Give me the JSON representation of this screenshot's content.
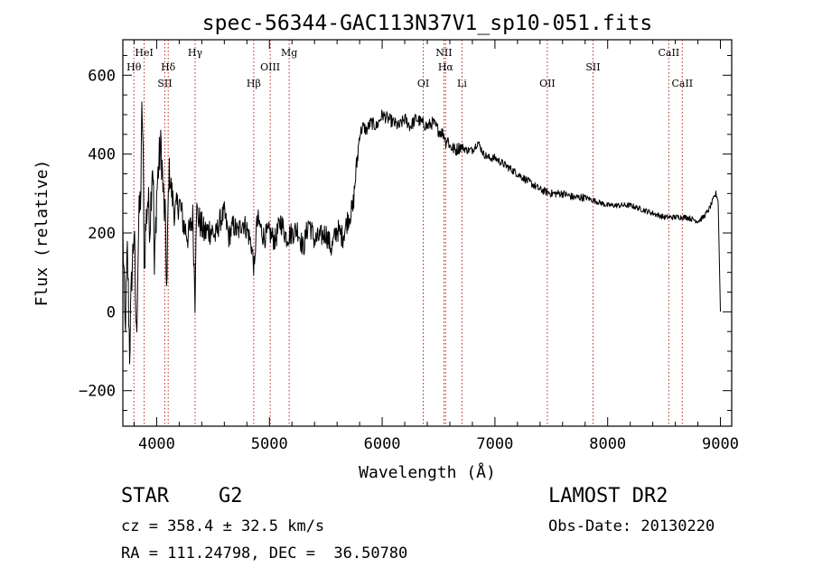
{
  "chart_data": {
    "type": "line",
    "title": "spec-56344-GAC113N37V1_sp10-051.fits",
    "xlabel": "Wavelength (Å)",
    "ylabel": "Flux (relative)",
    "xlim": [
      3700,
      9100
    ],
    "ylim": [
      -290,
      690
    ],
    "x_ticks": [
      4000,
      5000,
      6000,
      7000,
      8000,
      9000
    ],
    "y_ticks": [
      -200,
      0,
      200,
      400,
      600
    ],
    "series": [
      {
        "x": [
          3700,
          3720,
          3740,
          3760,
          3780,
          3800,
          3820,
          3840,
          3860,
          3870,
          3880,
          3890,
          3900,
          3920,
          3940,
          3960,
          3970,
          3980,
          4000,
          4020,
          4040,
          4060,
          4080,
          4090,
          4100,
          4110,
          4130,
          4160,
          4200,
          4240,
          4280,
          4320,
          4340,
          4350,
          4380,
          4420,
          4480,
          4520,
          4560,
          4600,
          4640,
          4680,
          4720,
          4760,
          4800,
          4840,
          4860,
          4870,
          4880,
          4900,
          4950,
          5000,
          5050,
          5100,
          5150,
          5200,
          5250,
          5300,
          5350,
          5400,
          5450,
          5500,
          5550,
          5600,
          5650,
          5700,
          5740,
          5760,
          5780,
          5800,
          5830,
          5860,
          5900,
          5950,
          6000,
          6050,
          6100,
          6150,
          6200,
          6250,
          6300,
          6350,
          6400,
          6450,
          6500,
          6550,
          6563,
          6580,
          6600,
          6650,
          6700,
          6750,
          6800,
          6850,
          6900,
          6950,
          7000,
          7100,
          7200,
          7300,
          7400,
          7500,
          7600,
          7700,
          7800,
          7900,
          8000,
          8100,
          8200,
          8300,
          8400,
          8500,
          8600,
          8700,
          8800,
          8850,
          8900,
          8930,
          8960,
          8980,
          9000
        ],
        "values": [
          200,
          -50,
          150,
          -100,
          100,
          210,
          -70,
          220,
          310,
          540,
          380,
          100,
          200,
          290,
          220,
          380,
          350,
          90,
          300,
          380,
          420,
          290,
          210,
          20,
          250,
          360,
          310,
          250,
          280,
          220,
          190,
          240,
          30,
          260,
          230,
          200,
          210,
          190,
          230,
          250,
          190,
          220,
          200,
          230,
          210,
          170,
          120,
          100,
          210,
          230,
          190,
          200,
          180,
          230,
          190,
          200,
          210,
          160,
          230,
          180,
          190,
          200,
          160,
          210,
          190,
          240,
          260,
          330,
          390,
          450,
          470,
          460,
          480,
          470,
          500,
          490,
          480,
          470,
          490,
          470,
          490,
          480,
          470,
          480,
          460,
          450,
          430,
          440,
          420,
          410,
          420,
          410,
          410,
          430,
          400,
          390,
          390,
          370,
          350,
          330,
          310,
          300,
          300,
          290,
          290,
          280,
          270,
          270,
          270,
          260,
          250,
          240,
          240,
          240,
          230,
          240,
          260,
          280,
          300,
          280,
          0
        ]
      }
    ],
    "lines": [
      {
        "label": "Hθ",
        "x": 3798,
        "row": 2
      },
      {
        "label": "HeI",
        "x": 3889,
        "row": 1
      },
      {
        "label": "SII",
        "x": 4072,
        "row": 3
      },
      {
        "label": "Hδ",
        "x": 4102,
        "row": 2
      },
      {
        "label": "Hγ",
        "x": 4341,
        "row": 1
      },
      {
        "label": "Hβ",
        "x": 4861,
        "row": 3
      },
      {
        "label": "OIII",
        "x": 5007,
        "row": 2
      },
      {
        "label": "Mg",
        "x": 5175,
        "row": 1
      },
      {
        "label": "OI",
        "x": 6364,
        "row": 3
      },
      {
        "label": "NII",
        "x": 6548,
        "row": 1
      },
      {
        "label": "Hα",
        "x": 6563,
        "row": 2
      },
      {
        "label": "Li",
        "x": 6708,
        "row": 3
      },
      {
        "label": "OII",
        "x": 7465,
        "row": 3
      },
      {
        "label": "SII",
        "x": 7870,
        "row": 2
      },
      {
        "label": "CaII",
        "x": 8542,
        "row": 1
      },
      {
        "label": "CaII",
        "x": 8662,
        "row": 3
      }
    ]
  },
  "info": {
    "class": "STAR",
    "subclass": "G2",
    "survey": "LAMOST DR2",
    "cz": "cz = 358.4 ± 32.5 km/s",
    "obs_date": "Obs-Date: 20130220",
    "coords": "RA = 111.24798, DEC =  36.50780"
  }
}
